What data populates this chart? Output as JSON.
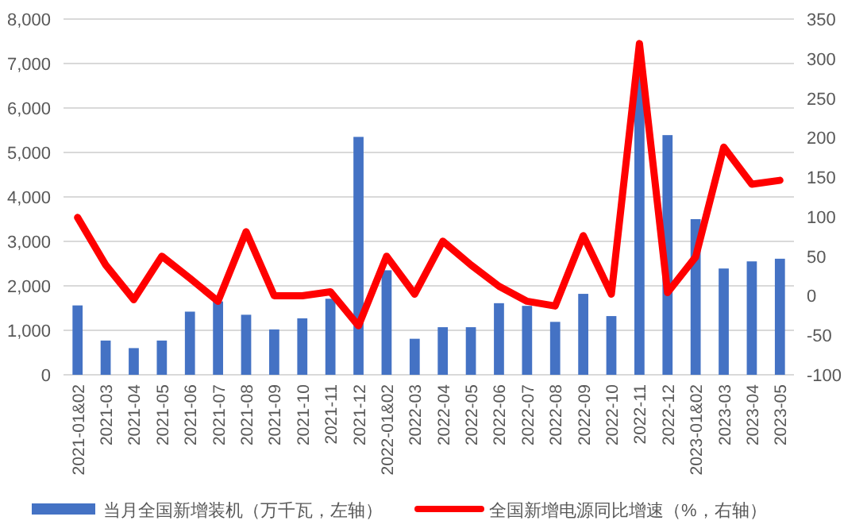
{
  "chart_data": {
    "type": "bar",
    "categories": [
      "2021-01&02",
      "2021-03",
      "2021-04",
      "2021-05",
      "2021-06",
      "2021-07",
      "2021-08",
      "2021-09",
      "2021-10",
      "2021-11",
      "2021-12",
      "2022-01&02",
      "2022-03",
      "2022-04",
      "2022-05",
      "2022-06",
      "2022-07",
      "2022-08",
      "2022-09",
      "2022-10",
      "2022-11",
      "2022-12",
      "2023-01&02",
      "2023-03",
      "2023-04",
      "2023-05"
    ],
    "series": [
      {
        "name": "当月全国新增装机（万千瓦，左轴）",
        "color": "#4472c4",
        "values": [
          1560,
          770,
          600,
          770,
          1420,
          1650,
          1350,
          1020,
          1270,
          1710,
          5350,
          2350,
          810,
          1070,
          1070,
          1610,
          1550,
          1190,
          1820,
          1320,
          6750,
          5390,
          3500,
          2390,
          2550,
          2610
        ]
      },
      {
        "name": "全国新增电源同比增速（%，右轴）",
        "type": "line",
        "axis": "y2",
        "color": "#ff0000",
        "values": [
          99,
          39,
          -5,
          50,
          22,
          -7,
          81,
          0,
          0,
          5,
          -38,
          50,
          2,
          69,
          39,
          12,
          -7,
          -13,
          76,
          2,
          319,
          4,
          49,
          188,
          141,
          146
        ]
      }
    ],
    "ylim": [
      0,
      8000
    ],
    "yticks": [
      {
        "value": 0,
        "label": "0"
      },
      {
        "value": 1000,
        "label": "1,000"
      },
      {
        "value": 2000,
        "label": "2,000"
      },
      {
        "value": 3000,
        "label": "3,000"
      },
      {
        "value": 4000,
        "label": "4,000"
      },
      {
        "value": 5000,
        "label": "5,000"
      },
      {
        "value": 6000,
        "label": "6,000"
      },
      {
        "value": 7000,
        "label": "7,000"
      },
      {
        "value": 8000,
        "label": "8,000"
      }
    ],
    "y2lim": [
      -100,
      350
    ],
    "y2ticks": [
      -100,
      -50,
      0,
      50,
      100,
      150,
      200,
      250,
      300,
      350
    ],
    "grid": "y",
    "legend": "bottom",
    "marker": "none",
    "line_style": "solid"
  }
}
